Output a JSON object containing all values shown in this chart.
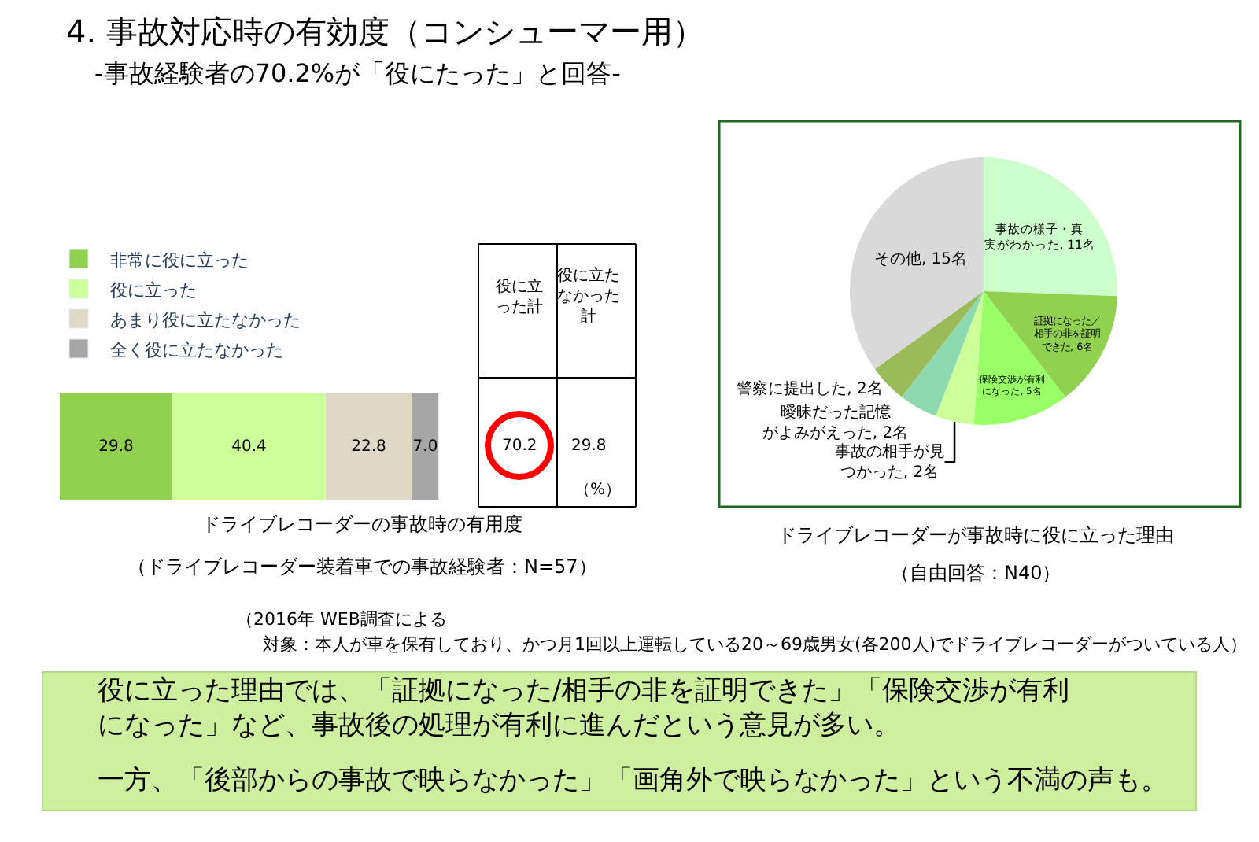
{
  "chart_data": [
    {
      "type": "bar",
      "orientation": "horizontal",
      "stacked": true,
      "title": "4. 事故対応時の有効度（コンシューマー用）",
      "subtitle": "-事故経験者の70.2%が「役にたった」と回答-",
      "xlabel": "ドライブレコーダーの事故時の有用度",
      "categories": [
        null
      ],
      "legend": "top",
      "series": [
        {
          "name": "非常に役に立った",
          "color": "#92d050",
          "values": [
            29.8
          ],
          "value_labels": [
            "29.8"
          ]
        },
        {
          "name": "役に立った",
          "color": "#ccff99",
          "values": [
            40.4
          ],
          "value_labels": [
            "40.4"
          ]
        },
        {
          "name": "あまり役に立たなかった",
          "color": "#ddd9c4",
          "values": [
            22.8
          ],
          "value_labels": [
            "22.8"
          ]
        },
        {
          "name": "全く役に立たなかった",
          "color": "#a6a6a6",
          "values": [
            7.0
          ],
          "value_labels": [
            "7.0"
          ]
        }
      ],
      "annotations": [
        "（ドライブレコーダー装着車での事故経験者：N=57）",
        "役に立った計",
        "役に立たなかった計",
        "70.2",
        "29.8",
        "（%）",
        "（2016年 WEB調査による",
        "対象：本人が車を保有しており、かつ月1回以上運転している20～69歳男女(各200人)でドライブレコーダーがついている人）",
        "役に立った理由では、「証拠になった/相手の非を証明できた」「保険交渉が有利になった」など、事故後の処理が有利に進んだという意見が多い。",
        "一方、「後部からの事故で映らなかった」「画角外で映らなかった」という不満の声も。"
      ]
    },
    {
      "type": "pie",
      "xlabel": "ドライブレコーダーが事故時に役に立った理由",
      "legend": false,
      "categories": [
        "事故の様子・真実がわかった",
        "証拠になった／相手の非を証明できた",
        "保険交渉が有利になった",
        "事故の相手が見つかった",
        "曖昧だった記憶がよみがえった",
        "警察に提出した",
        "その他"
      ],
      "values": [
        11,
        6,
        5,
        2,
        2,
        2,
        15
      ],
      "value_labels": [
        "11名",
        "6名",
        "5名",
        "2名",
        "2名",
        "2名",
        "15名"
      ],
      "colors": [
        "#ccffcc",
        "#92d050",
        "#99ff66",
        "#ccff99",
        "#8fd9b0",
        "#9bbb59",
        "#d9d9d9"
      ],
      "annotations": [
        "（自由回答：N40）"
      ]
    }
  ]
}
